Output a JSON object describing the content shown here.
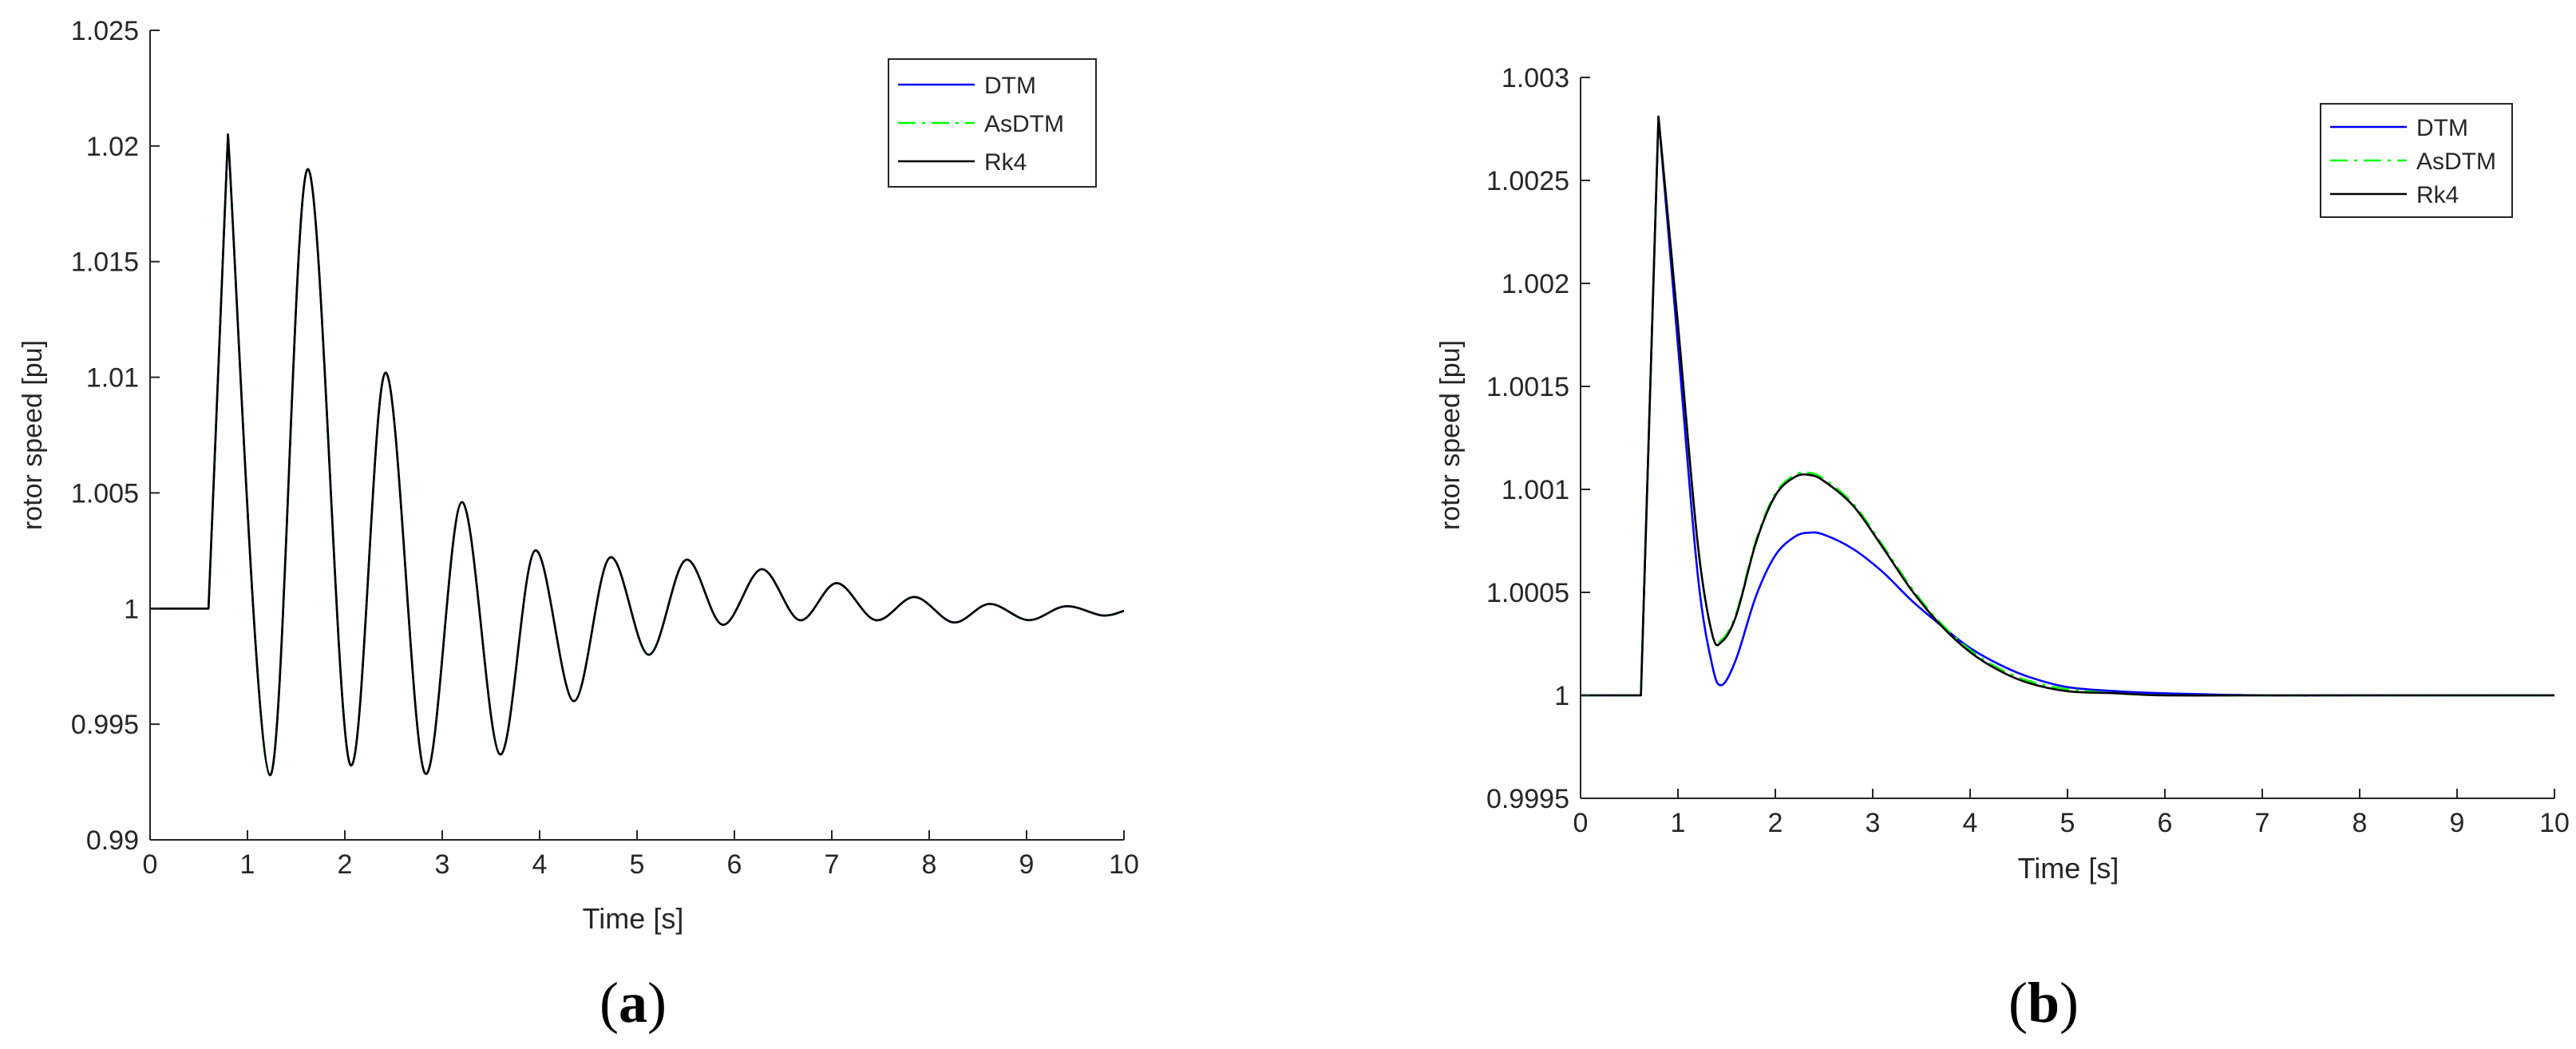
{
  "figure_labels": {
    "a": {
      "open": "(",
      "letter": "a",
      "close": ")"
    },
    "b": {
      "open": "(",
      "letter": "b",
      "close": ")"
    }
  },
  "chart_data": [
    {
      "type": "line",
      "id": "a",
      "xlabel": "Time [s]",
      "ylabel": "rotor speed [pu]",
      "xlim": [
        0,
        10
      ],
      "ylim": [
        0.99,
        1.025
      ],
      "xticks": [
        0,
        1,
        2,
        3,
        4,
        5,
        6,
        7,
        8,
        9,
        10
      ],
      "xtick_labels": [
        "0",
        "1",
        "2",
        "3",
        "4",
        "5",
        "6",
        "7",
        "8",
        "9",
        "10"
      ],
      "yticks": [
        0.99,
        0.995,
        1,
        1.005,
        1.01,
        1.015,
        1.02,
        1.025
      ],
      "ytick_labels": [
        "0.99",
        "0.995",
        "1",
        "1.005",
        "1.01",
        "1.015",
        "1.02",
        "1.025"
      ],
      "grid": false,
      "legend_position": "top-right",
      "series": [
        {
          "name": "DTM",
          "color": "#0000ff",
          "dash": "solid"
        },
        {
          "name": "AsDTM",
          "color": "#00ff00",
          "dash": "dashdot"
        },
        {
          "name": "Rk4",
          "color": "#000000",
          "dash": "solid"
        }
      ],
      "x": [
        0,
        0.6,
        0.8,
        1.23,
        1.62,
        2.05,
        2.42,
        2.82,
        3.2,
        3.59,
        3.95,
        4.35,
        4.72,
        5.12,
        5.5,
        5.88,
        6.28,
        6.67,
        7.05,
        7.45,
        7.85,
        8.25,
        8.62,
        9.02,
        9.4,
        9.78,
        10
      ],
      "y": [
        1.0,
        1.0,
        1.0205,
        0.9928,
        1.019,
        0.9933,
        1.0102,
        0.9929,
        1.0046,
        0.9937,
        1.0025,
        0.996,
        1.0022,
        0.998,
        1.0021,
        0.9993,
        1.0017,
        0.9995,
        1.0011,
        0.9995,
        1.0005,
        0.9994,
        1.0002,
        0.9995,
        1.0001,
        0.9997,
        0.9999
      ]
    },
    {
      "type": "line",
      "id": "b",
      "xlabel": "Time [s]",
      "ylabel": "rotor speed [pu]",
      "xlim": [
        0,
        10
      ],
      "ylim": [
        0.9995,
        1.003
      ],
      "xticks": [
        0,
        1,
        2,
        3,
        4,
        5,
        6,
        7,
        8,
        9,
        10
      ],
      "xtick_labels": [
        "0",
        "1",
        "2",
        "3",
        "4",
        "5",
        "6",
        "7",
        "8",
        "9",
        "10"
      ],
      "yticks": [
        0.9995,
        1,
        1.0005,
        1.001,
        1.0015,
        1.002,
        1.0025,
        1.003
      ],
      "ytick_labels": [
        "0.9995",
        "1",
        "1.0005",
        "1.001",
        "1.0015",
        "1.002",
        "1.0025",
        "1.003"
      ],
      "grid": false,
      "legend_position": "top-right",
      "series": [
        {
          "name": "DTM",
          "color": "#0000ff",
          "dash": "solid",
          "x": [
            0,
            0.6,
            0.62,
            0.8,
            1.0,
            1.2,
            1.35,
            1.45,
            1.6,
            1.8,
            2.0,
            2.2,
            2.35,
            2.5,
            2.8,
            3.1,
            3.4,
            3.7,
            4.0,
            4.3,
            4.6,
            5.0,
            5.5,
            6.0,
            7.0,
            8.0,
            9.0,
            10.0
          ],
          "y": [
            1.0,
            1.0,
            1.0,
            1.00281,
            1.0017,
            1.0006,
            1.00015,
            1.00005,
            1.00018,
            1.00048,
            1.00068,
            1.00077,
            1.00079,
            1.00078,
            1.00071,
            1.0006,
            1.00046,
            1.00034,
            1.00023,
            1.00015,
            1.00009,
            1.00004,
            1.00002,
            1.00001,
            1.0,
            1.0,
            1.0,
            1.0
          ]
        },
        {
          "name": "AsDTM",
          "color": "#00ff00",
          "dash": "dashdot",
          "x": [
            0,
            0.6,
            0.62,
            0.8,
            1.0,
            1.2,
            1.35,
            1.45,
            1.6,
            1.8,
            2.0,
            2.2,
            2.35,
            2.5,
            2.8,
            3.1,
            3.4,
            3.7,
            4.0,
            4.3,
            4.6,
            5.0,
            5.5,
            6.0,
            7.0,
            8.0,
            9.0,
            10.0
          ],
          "y": [
            1.0,
            1.0,
            1.0,
            1.00281,
            1.0018,
            1.00075,
            1.0003,
            1.00027,
            1.0004,
            1.00075,
            1.00098,
            1.00107,
            1.00108,
            1.00105,
            1.00093,
            1.00073,
            1.00052,
            1.00035,
            1.00022,
            1.00013,
            1.00007,
            1.00003,
            1.00001,
            1.0,
            1.0,
            1.0,
            1.0,
            1.0
          ]
        },
        {
          "name": "Rk4",
          "color": "#000000",
          "dash": "solid",
          "x": [
            0,
            0.6,
            0.62,
            0.8,
            1.0,
            1.2,
            1.35,
            1.45,
            1.6,
            1.8,
            2.0,
            2.2,
            2.35,
            2.5,
            2.8,
            3.1,
            3.4,
            3.7,
            4.0,
            4.3,
            4.6,
            5.0,
            5.5,
            6.0,
            7.0,
            8.0,
            9.0,
            10.0
          ],
          "y": [
            1.0,
            1.0,
            1.0,
            1.00281,
            1.0018,
            1.00075,
            1.0003,
            1.00026,
            1.00039,
            1.00074,
            1.00097,
            1.00106,
            1.00107,
            1.00104,
            1.00092,
            1.00072,
            1.00051,
            1.00034,
            1.00021,
            1.00012,
            1.00006,
            1.00002,
            1.00001,
            1.0,
            1.0,
            1.0,
            1.0,
            1.0
          ]
        }
      ]
    }
  ]
}
